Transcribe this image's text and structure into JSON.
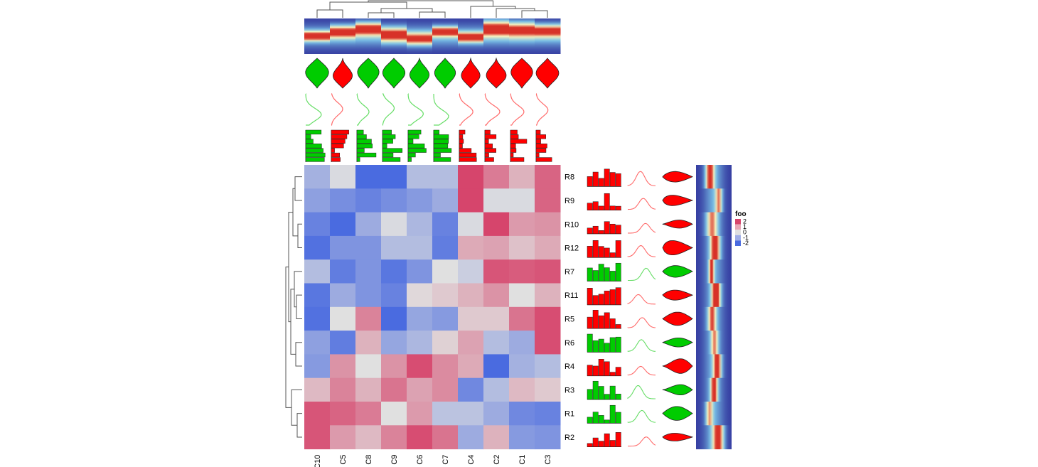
{
  "chart_data": {
    "type": "heatmap",
    "title": "",
    "xlabel": "",
    "ylabel": "",
    "columns": [
      "C10",
      "C5",
      "C8",
      "C9",
      "C6",
      "C7",
      "C4",
      "C2",
      "C1",
      "C3"
    ],
    "rows": [
      "R8",
      "R9",
      "R10",
      "R12",
      "R7",
      "R11",
      "R5",
      "R6",
      "R4",
      "R3",
      "R1",
      "R2"
    ],
    "values": [
      [
        -0.8,
        -0.1,
        -2.0,
        -2.0,
        -0.6,
        -0.6,
        2.0,
        1.3,
        0.6,
        1.6
      ],
      [
        -1.1,
        -1.4,
        -1.6,
        -1.4,
        -1.2,
        -0.9,
        2.0,
        -0.1,
        -0.1,
        1.6
      ],
      [
        -1.6,
        -2.0,
        -0.9,
        -0.1,
        -0.7,
        -1.6,
        -0.1,
        2.0,
        0.9,
        1.0
      ],
      [
        -1.9,
        -1.3,
        -1.3,
        -0.6,
        -0.6,
        -1.7,
        0.7,
        0.8,
        0.4,
        0.7
      ],
      [
        -0.6,
        -1.7,
        -1.3,
        -1.8,
        -1.3,
        0.0,
        -0.3,
        1.8,
        1.7,
        1.8
      ],
      [
        -1.8,
        -0.9,
        -1.3,
        -1.6,
        0.1,
        0.3,
        0.6,
        1.0,
        0.0,
        0.6
      ],
      [
        -1.9,
        0.0,
        1.2,
        -2.0,
        -1.0,
        -1.2,
        0.3,
        0.3,
        1.4,
        1.9
      ],
      [
        -1.1,
        -1.7,
        0.6,
        -1.0,
        -0.7,
        0.2,
        0.8,
        -0.6,
        -0.9,
        1.9
      ],
      [
        -1.2,
        1.0,
        0.0,
        1.0,
        1.9,
        1.1,
        0.7,
        -2.0,
        -0.8,
        -0.6
      ],
      [
        0.5,
        1.2,
        0.6,
        1.4,
        0.8,
        1.1,
        -1.5,
        -0.6,
        0.5,
        0.3
      ],
      [
        1.8,
        1.6,
        1.3,
        0.0,
        0.9,
        -0.5,
        -0.5,
        -0.9,
        -1.5,
        -1.6
      ],
      [
        1.8,
        0.9,
        0.5,
        1.2,
        1.9,
        1.4,
        -0.9,
        0.6,
        -1.2,
        -1.3
      ]
    ],
    "column_groups": [
      "green",
      "red",
      "green",
      "green",
      "green",
      "green",
      "red",
      "red",
      "red",
      "red"
    ],
    "row_groups": [
      "red",
      "red",
      "red",
      "red",
      "green",
      "red",
      "red",
      "green",
      "red",
      "green",
      "green",
      "red"
    ],
    "row_order_colors": {
      "red": "#ff0000",
      "green": "#00cc00"
    },
    "legend": {
      "title": "foo",
      "placement": "right",
      "breaks": [
        2,
        1,
        0,
        -1,
        -2
      ],
      "labels": [
        "2",
        "1",
        "0",
        "-1",
        "-2"
      ],
      "colors": [
        "#d6456c",
        "#e8a6b5",
        "#e0e0e0",
        "#a0aee6",
        "#4a6be0"
      ]
    },
    "annotations": [
      "column dendrogram",
      "column density heatmap",
      "column violin",
      "column density",
      "column histogram",
      "row dendrogram",
      "row histogram",
      "row density",
      "row violin",
      "row density heatmap"
    ]
  },
  "colors": {
    "high": "#d6456c",
    "mid": "#e0e0e0",
    "low": "#4a6be0",
    "group_red": "#ff0000",
    "group_green": "#00cc00"
  }
}
